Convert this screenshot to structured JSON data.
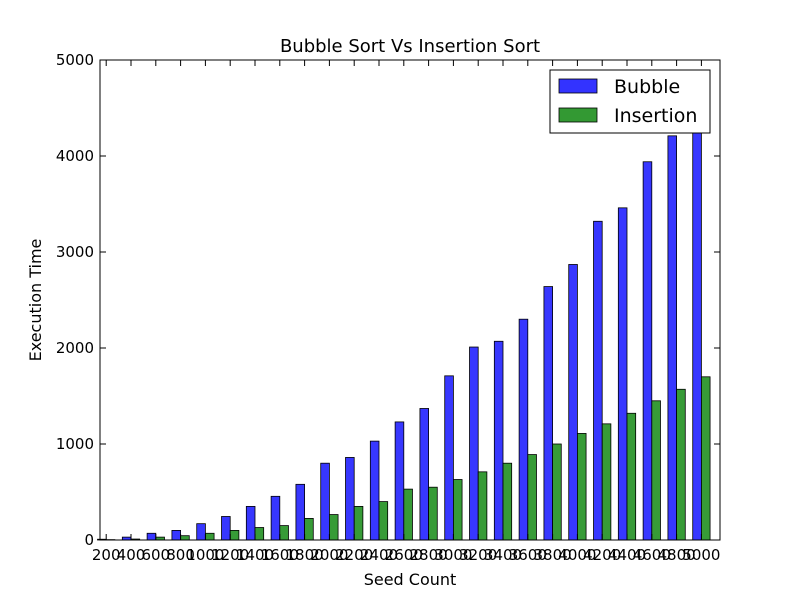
{
  "chart_data": {
    "type": "bar",
    "title": "Bubble Sort Vs Insertion Sort",
    "xlabel": "Seed Count",
    "ylabel": "Execution Time",
    "ylim": [
      0,
      5000
    ],
    "yticks": [
      "0",
      "1000",
      "2000",
      "3000",
      "4000",
      "5000"
    ],
    "categories": [
      "200",
      "400",
      "600",
      "800",
      "1000",
      "1200",
      "1400",
      "1600",
      "1800",
      "2000",
      "2200",
      "2400",
      "2600",
      "2800",
      "3000",
      "3200",
      "3400",
      "3600",
      "3800",
      "4000",
      "4200",
      "4400",
      "4600",
      "4800",
      "5000"
    ],
    "xtick_labels": [
      "200",
      "400",
      "600",
      "800",
      "1000",
      "1200",
      "1400",
      "1600",
      "1800",
      "2000",
      "2200",
      "2400",
      "2600",
      "2800",
      "3000",
      "3200",
      "3400",
      "3600",
      "3800",
      "4000",
      "4200",
      "4400",
      "4600",
      "4800",
      "5000"
    ],
    "series": [
      {
        "name": "Bubble",
        "color": "#3333ff",
        "values": [
          8,
          30,
          70,
          100,
          170,
          245,
          350,
          455,
          580,
          800,
          860,
          1030,
          1230,
          1370,
          1710,
          2010,
          2070,
          2300,
          2640,
          2870,
          3320,
          3460,
          3940,
          4210,
          4260
        ]
      },
      {
        "name": "Insertion",
        "color": "#339933",
        "values": [
          4,
          10,
          30,
          45,
          70,
          100,
          130,
          150,
          225,
          265,
          350,
          400,
          530,
          550,
          630,
          710,
          800,
          890,
          1000,
          1110,
          1210,
          1320,
          1450,
          1570,
          1700
        ]
      }
    ],
    "legend_position": "top-right",
    "grid": false
  }
}
